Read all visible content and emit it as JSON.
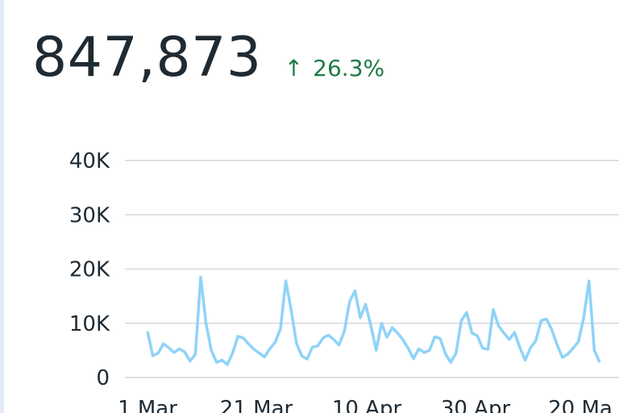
{
  "metric": {
    "value": "847,873",
    "delta_direction": "up",
    "delta_icon": "arrow-up-icon",
    "delta_text": "26.3%",
    "delta_color": "#1e7a45"
  },
  "chart_data": {
    "type": "line",
    "ylim": [
      0,
      40000
    ],
    "ytick_values": [
      0,
      10000,
      20000,
      30000,
      40000
    ],
    "ytick_labels": [
      "0",
      "10K",
      "20K",
      "30K",
      "40K"
    ],
    "xtick_labels": [
      "1 Mar",
      "21 Mar",
      "10 Apr",
      "30 Apr",
      "20 Ma"
    ],
    "grid": true,
    "line_color": "#8fd3f7",
    "series": [
      {
        "values": [
          8500,
          4000,
          4500,
          6200,
          5500,
          4600,
          5300,
          4700,
          3000,
          4300,
          18500,
          10000,
          5000,
          2800,
          3200,
          2400,
          4500,
          7600,
          7300,
          6200,
          5200,
          4500,
          3800,
          5300,
          6500,
          9000,
          17800,
          12500,
          6300,
          4000,
          3400,
          5600,
          5800,
          7300,
          7800,
          7000,
          6000,
          8500,
          14000,
          16000,
          11000,
          13500,
          9500,
          5000,
          10000,
          7400,
          9200,
          8200,
          7000,
          5400,
          3500,
          5300,
          4600,
          5000,
          7500,
          7200,
          4400,
          2800,
          4500,
          10500,
          12000,
          8200,
          7700,
          5400,
          5200,
          12500,
          9500,
          8200,
          7000,
          8300,
          5500,
          3200,
          5500,
          6800,
          10500,
          10800,
          8800,
          6000,
          3700,
          4300,
          5400,
          6600,
          11000,
          17800,
          5000,
          2800
        ]
      }
    ]
  }
}
